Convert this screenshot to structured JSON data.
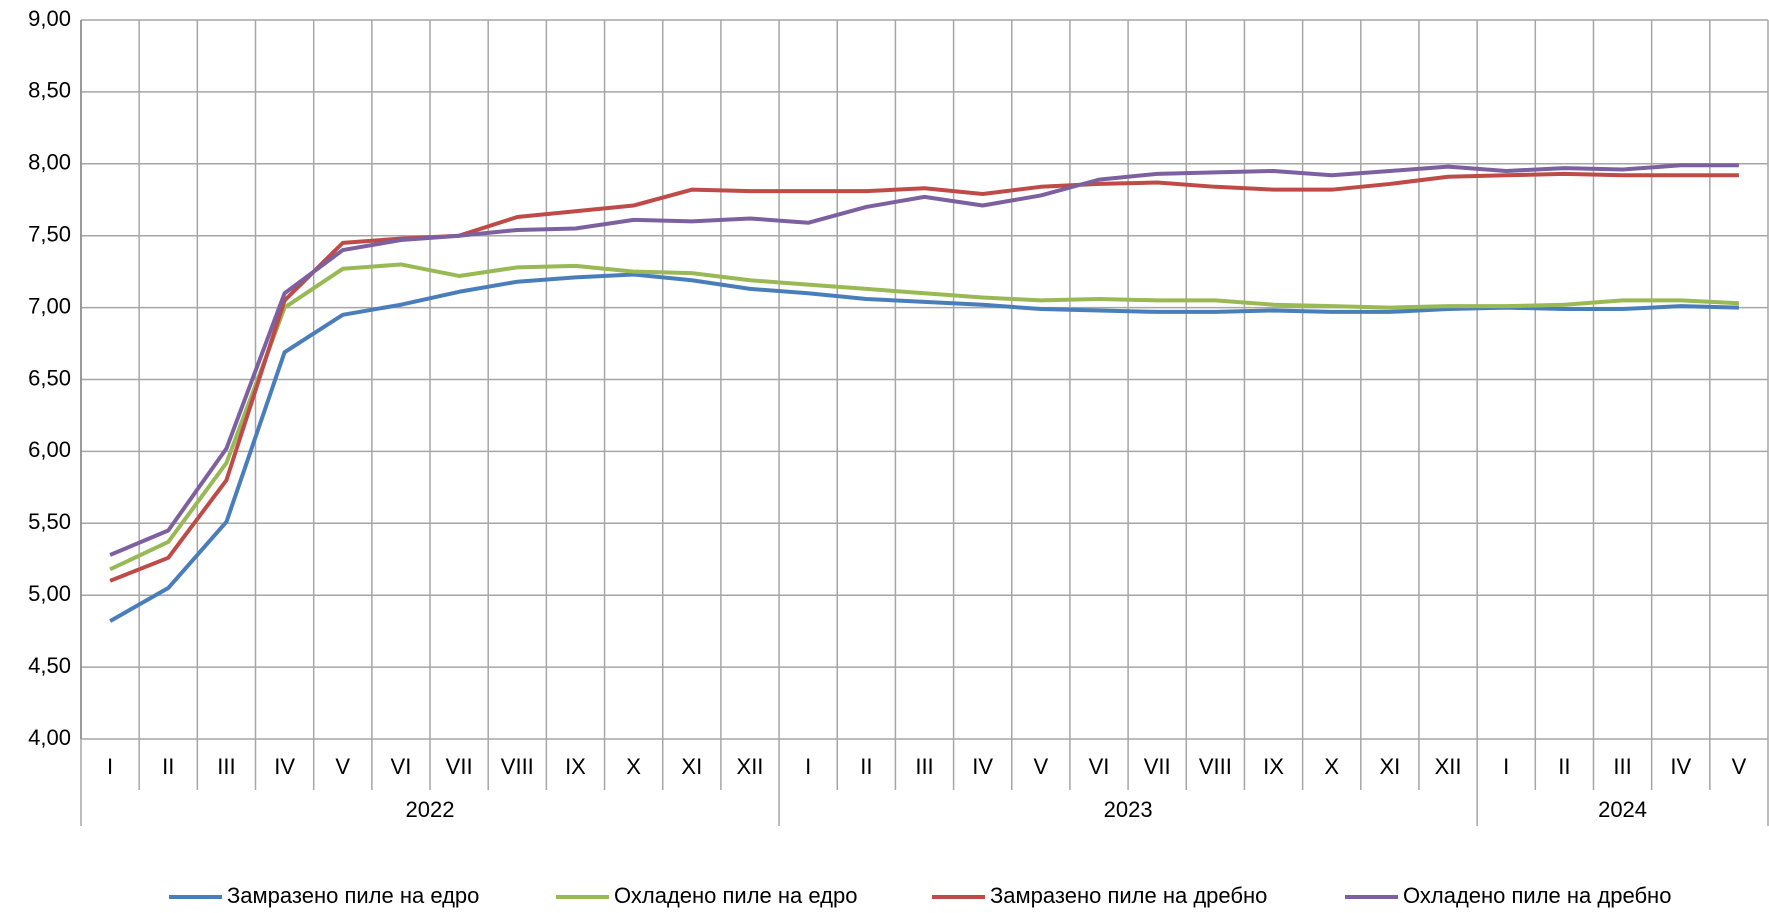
{
  "chart_data": {
    "type": "line",
    "categories": [
      "I",
      "II",
      "III",
      "IV",
      "V",
      "VI",
      "VII",
      "VIII",
      "IX",
      "X",
      "XI",
      "XII",
      "I",
      "II",
      "III",
      "IV",
      "V",
      "VI",
      "VII",
      "VIII",
      "IX",
      "X",
      "XI",
      "XII",
      "I",
      "II",
      "III",
      "IV",
      "V"
    ],
    "groups": [
      {
        "label": "2022",
        "count": 12
      },
      {
        "label": "2023",
        "count": 12
      },
      {
        "label": "2024",
        "count": 5
      }
    ],
    "series": [
      {
        "name": "Замразено пиле на едро",
        "color": "#4a7ebb",
        "values": [
          4.82,
          5.05,
          5.51,
          6.69,
          6.95,
          7.02,
          7.11,
          7.18,
          7.21,
          7.23,
          7.19,
          7.13,
          7.1,
          7.06,
          7.04,
          7.02,
          6.99,
          6.98,
          6.97,
          6.97,
          6.98,
          6.97,
          6.97,
          6.99,
          7.0,
          6.99,
          6.99,
          7.01,
          7.0
        ]
      },
      {
        "name": "Охладено пиле на едро",
        "color": "#98b954",
        "values": [
          5.18,
          5.37,
          5.92,
          7.0,
          7.27,
          7.3,
          7.22,
          7.28,
          7.29,
          7.25,
          7.24,
          7.19,
          7.16,
          7.13,
          7.1,
          7.07,
          7.05,
          7.06,
          7.05,
          7.05,
          7.02,
          7.01,
          7.0,
          7.01,
          7.01,
          7.02,
          7.05,
          7.05,
          7.03
        ]
      },
      {
        "name": "Замразено пиле на дребно",
        "color": "#be4b48",
        "values": [
          5.1,
          5.26,
          5.8,
          7.05,
          7.45,
          7.48,
          7.5,
          7.63,
          7.67,
          7.71,
          7.82,
          7.81,
          7.81,
          7.81,
          7.83,
          7.79,
          7.84,
          7.86,
          7.87,
          7.84,
          7.82,
          7.82,
          7.86,
          7.91,
          7.92,
          7.93,
          7.92,
          7.92,
          7.92
        ]
      },
      {
        "name": "Охладено пиле на дребно",
        "color": "#7d60a0",
        "values": [
          5.28,
          5.45,
          6.02,
          7.1,
          7.4,
          7.47,
          7.5,
          7.54,
          7.55,
          7.61,
          7.6,
          7.62,
          7.59,
          7.7,
          7.77,
          7.71,
          7.78,
          7.89,
          7.93,
          7.94,
          7.95,
          7.92,
          7.95,
          7.98,
          7.95,
          7.97,
          7.96,
          7.99,
          7.99
        ]
      }
    ],
    "ylim": [
      4,
      9
    ],
    "yticks": [
      {
        "value": 4,
        "label": "4,00"
      },
      {
        "value": 4.5,
        "label": "4,50"
      },
      {
        "value": 5,
        "label": "5,00"
      },
      {
        "value": 5.5,
        "label": "5,50"
      },
      {
        "value": 6,
        "label": "6,00"
      },
      {
        "value": 6.5,
        "label": "6,50"
      },
      {
        "value": 7,
        "label": "7,00"
      },
      {
        "value": 7.5,
        "label": "7,50"
      },
      {
        "value": 8,
        "label": "8,00"
      },
      {
        "value": 8.5,
        "label": "8,50"
      },
      {
        "value": 9,
        "label": "9,00"
      }
    ],
    "grid": true,
    "legend": "bottom"
  }
}
